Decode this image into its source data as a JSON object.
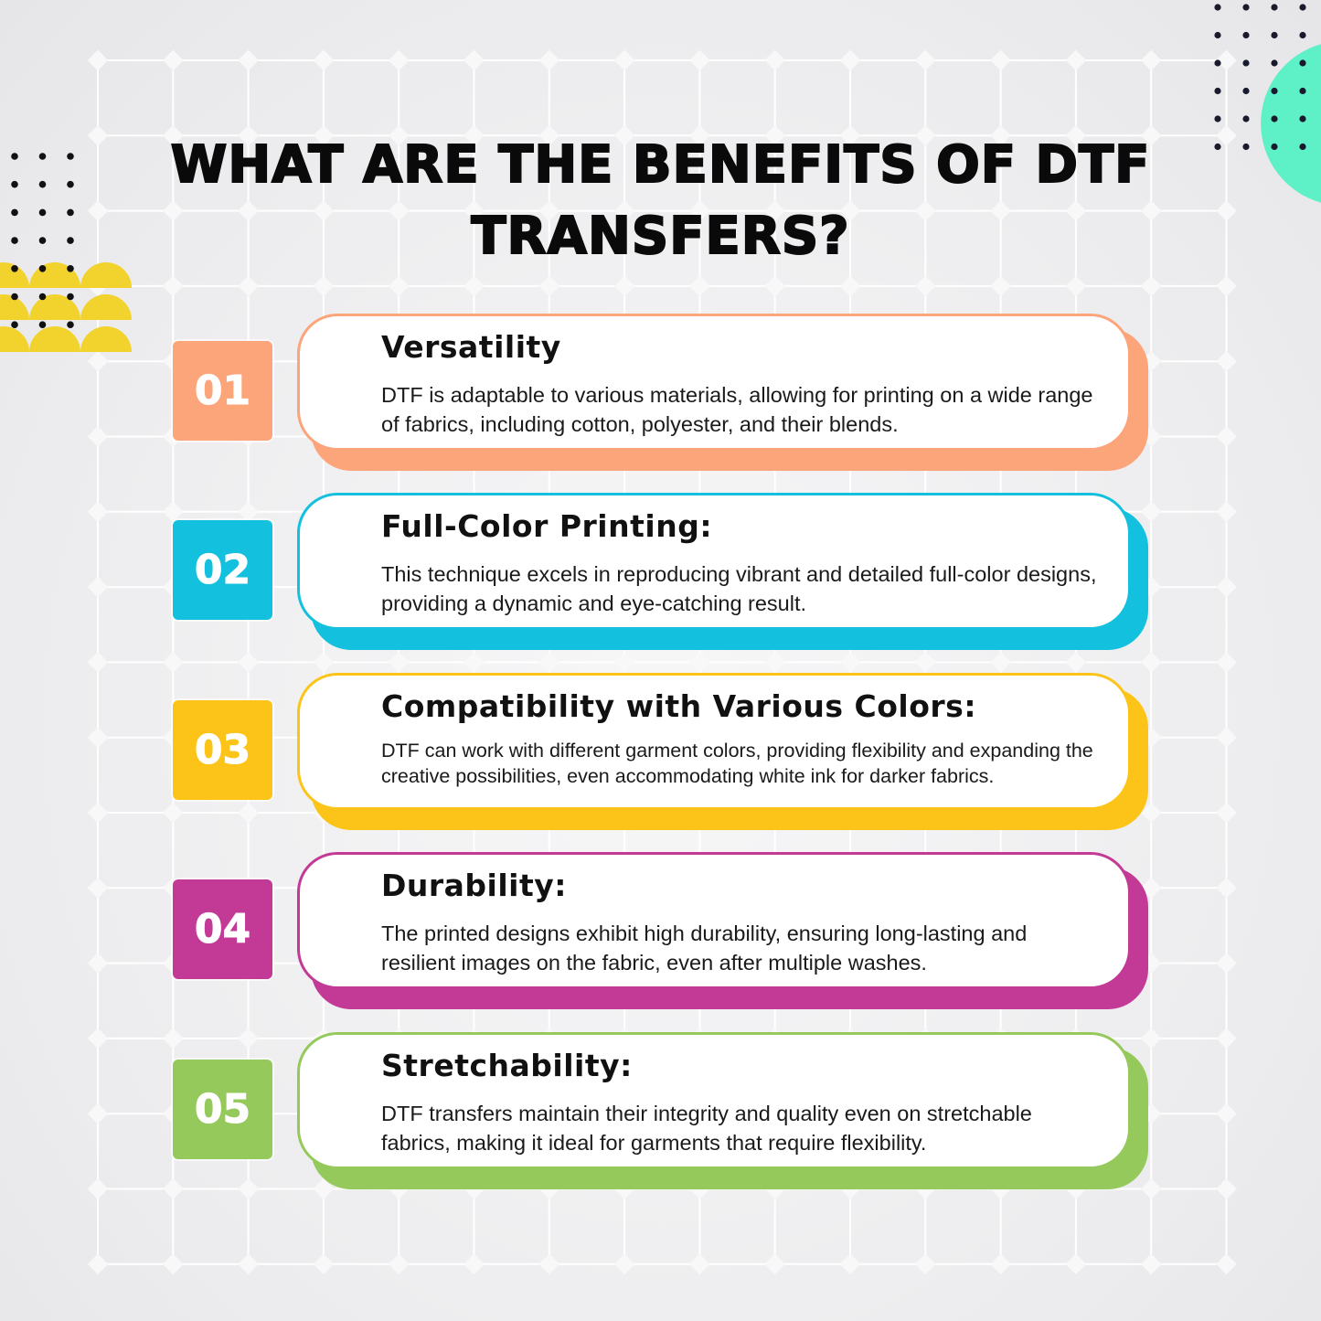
{
  "title": {
    "line1": "WHAT ARE THE BENEFITS OF DTF",
    "line2": "TRANSFERS?"
  },
  "colors": {
    "orange": "#fca47a",
    "cyan": "#13c0de",
    "yellow": "#fcc419",
    "magenta": "#c23a96",
    "green": "#95c95b",
    "mint": "#5ef0c6",
    "semicircle_yellow": "#f2d22d"
  },
  "benefits": [
    {
      "number": "01",
      "heading": "Versatility",
      "text": "DTF is adaptable to various materials, allowing for printing on a wide range of fabrics, including cotton, polyester, and their blends.",
      "color": "#fca47a"
    },
    {
      "number": "02",
      "heading": "Full-Color Printing:",
      "text": "This technique excels in reproducing vibrant and detailed full-color designs, providing a dynamic and eye-catching result.",
      "color": "#13c0de"
    },
    {
      "number": "03",
      "heading": "Compatibility with Various Colors:",
      "text": "DTF can work with different garment colors, providing flexibility and expanding the creative possibilities, even accommodating white ink for darker fabrics.",
      "color": "#fcc419"
    },
    {
      "number": "04",
      "heading": "Durability:",
      "text": "The printed designs exhibit high durability, ensuring long-lasting and resilient images on the fabric, even after multiple washes.",
      "color": "#c23a96"
    },
    {
      "number": "05",
      "heading": "Stretchability:",
      "text": "DTF transfers maintain their integrity and quality even on stretchable fabrics, making it ideal for garments that require flexibility.",
      "color": "#95c95b"
    }
  ]
}
